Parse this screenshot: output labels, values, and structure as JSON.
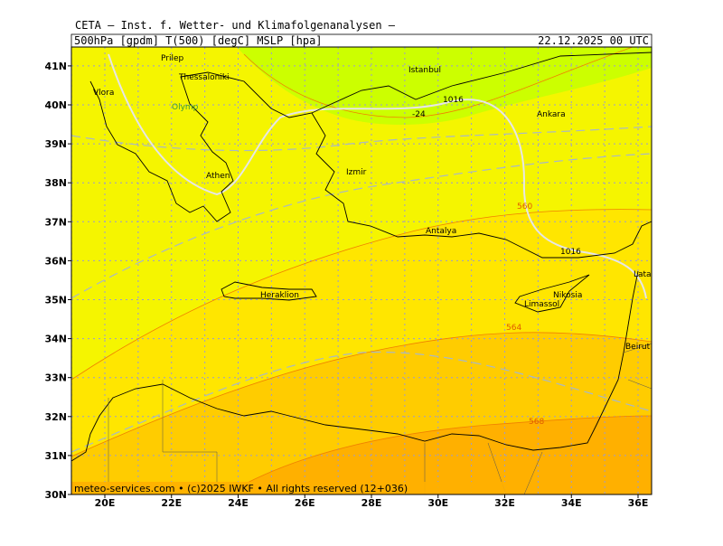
{
  "header": {
    "title": "CETA — Inst. f. Wetter- und Klimafolgenanalysen —",
    "fields": "500hPa [gpdm] T(500) [degC] MSLP [hpa]",
    "date": "22.12.2025 00 UTC"
  },
  "axes": {
    "latitudes": [
      "30N",
      "31N",
      "32N",
      "33N",
      "34N",
      "35N",
      "36N",
      "37N",
      "38N",
      "39N",
      "40N",
      "41N"
    ],
    "longitudes": [
      "20E",
      "22E",
      "24E",
      "26E",
      "28E",
      "30E",
      "32E",
      "34E",
      "36E"
    ]
  },
  "places": [
    "Prilep",
    "Thessaloniki",
    "Vlora",
    "Olymp",
    "Istanbul",
    "Ankara",
    "Izmir",
    "Athen",
    "Antalya",
    "Heraklion",
    "Nikosia",
    "Limassol",
    "Latakia",
    "Beirut"
  ],
  "contour_labels": [
    "1016",
    "1016",
    "560",
    "564",
    "568",
    "-24"
  ],
  "footer": "meteo-services.com • (c)2025 IWKF • All rights reserved (12+036)"
}
